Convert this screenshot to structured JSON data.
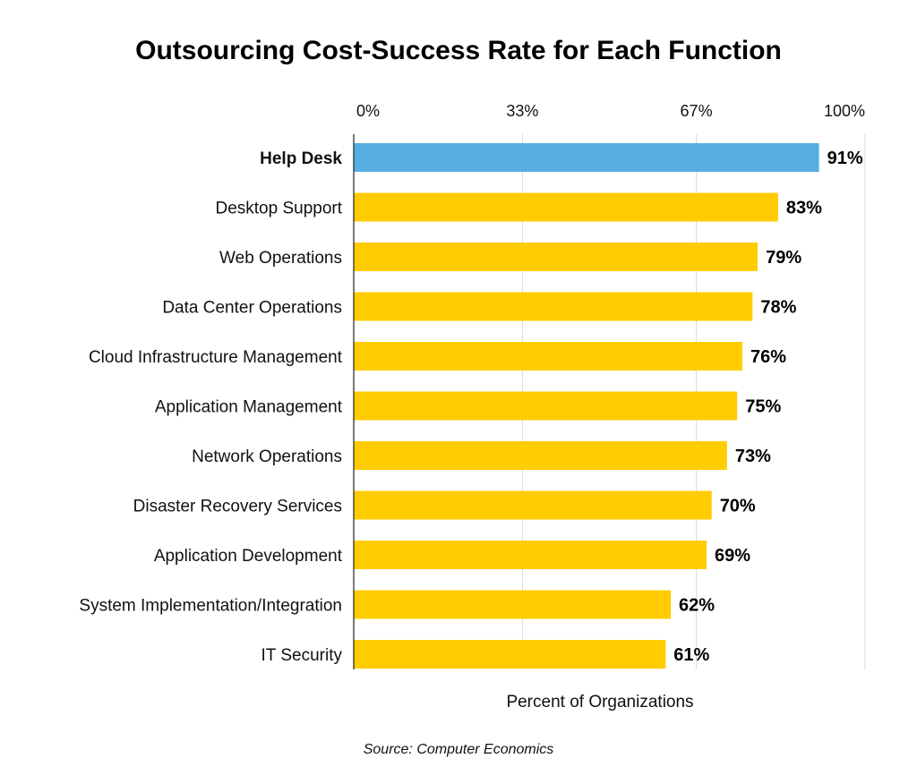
{
  "chart_data": {
    "type": "bar",
    "orientation": "horizontal",
    "title": "Outsourcing Cost-Success Rate for Each Function",
    "xlabel": "Percent of Organizations",
    "ylabel": "",
    "xlim": [
      0,
      100
    ],
    "ticks": [
      0,
      33,
      67,
      100
    ],
    "tick_labels": [
      "0%",
      "33%",
      "67%",
      "100%"
    ],
    "categories": [
      "Help Desk",
      "Desktop Support",
      "Web Operations",
      "Data Center Operations",
      "Cloud Infrastructure Management",
      "Application Management",
      "Network Operations",
      "Disaster Recovery Services",
      "Application Development",
      "System Implementation/Integration",
      "IT Security"
    ],
    "values": [
      91,
      83,
      79,
      78,
      76,
      75,
      73,
      70,
      69,
      62,
      61
    ],
    "value_labels": [
      "91%",
      "83%",
      "79%",
      "78%",
      "76%",
      "75%",
      "73%",
      "70%",
      "69%",
      "62%",
      "61%"
    ],
    "highlight_index": 0,
    "colors": {
      "highlight": "#56AEE2",
      "default": "#FFCC00"
    },
    "grid": true,
    "source": "Source: Computer Economics"
  }
}
